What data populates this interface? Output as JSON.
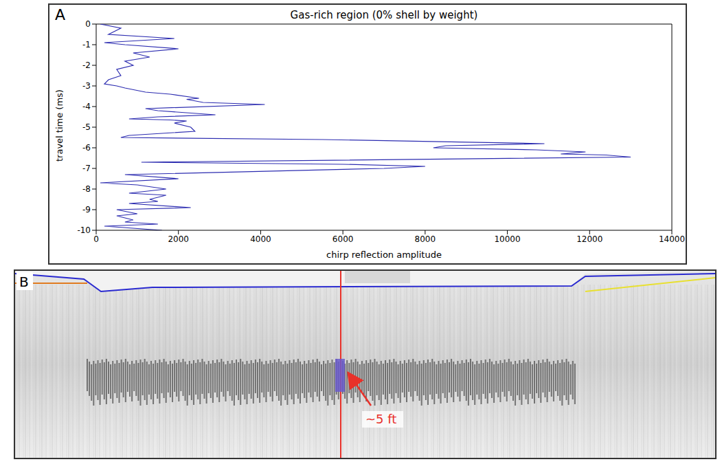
{
  "chart_data": {
    "type": "line",
    "panel": "A",
    "title": "Gas-rich region (0% shell by weight)",
    "x_label": "chirp reflection amplitude",
    "y_label": "travel time (ms)",
    "x": [
      100,
      600,
      300,
      1900,
      200,
      700,
      2000,
      900,
      1300,
      700,
      900,
      500,
      600,
      300,
      200,
      500,
      700,
      1200,
      1800,
      2500,
      2200,
      2600,
      4100,
      1200,
      1500,
      2900,
      1500,
      800,
      1800,
      2200,
      1900,
      2300,
      2400,
      800,
      600,
      5500,
      10900,
      8500,
      8200,
      10700,
      11900,
      11300,
      12400,
      13000,
      1100,
      6000,
      8000,
      7000,
      700,
      2000,
      100,
      1000,
      1700,
      800,
      1700,
      1300,
      1500,
      800,
      2300,
      500,
      1000,
      500,
      900,
      700,
      1500,
      200,
      1600
    ],
    "values": [
      0,
      -0.2,
      -0.5,
      -0.7,
      -0.9,
      -1.0,
      -1.2,
      -1.4,
      -1.6,
      -1.8,
      -2.0,
      -2.2,
      -2.5,
      -2.7,
      -2.9,
      -3.0,
      -3.1,
      -3.3,
      -3.4,
      -3.6,
      -3.65,
      -3.8,
      -3.9,
      -4.1,
      -4.2,
      -4.4,
      -4.5,
      -4.6,
      -4.65,
      -4.7,
      -4.8,
      -5.0,
      -5.2,
      -5.4,
      -5.5,
      -5.6,
      -5.8,
      -5.9,
      -6.0,
      -6.1,
      -6.2,
      -6.3,
      -6.35,
      -6.45,
      -6.7,
      -6.8,
      -6.9,
      -7.0,
      -7.3,
      -7.5,
      -7.7,
      -7.8,
      -8.0,
      -8.2,
      -8.3,
      -8.5,
      -8.6,
      -8.7,
      -8.9,
      -9.0,
      -9.2,
      -9.3,
      -9.5,
      -9.6,
      -9.7,
      -9.8,
      -10
    ],
    "color": "#2b2bb0",
    "xlim": [
      0,
      14000
    ],
    "xticks": [
      0,
      2000,
      4000,
      6000,
      8000,
      10000,
      12000,
      14000
    ],
    "ylim": [
      -10,
      0
    ],
    "yticks": [
      -10,
      -9,
      -8,
      -7,
      -6,
      -5,
      -4,
      -3,
      -2,
      -1,
      0
    ],
    "grid": false
  },
  "panel_b": {
    "panel": "B",
    "annotation": "~5 ft"
  }
}
